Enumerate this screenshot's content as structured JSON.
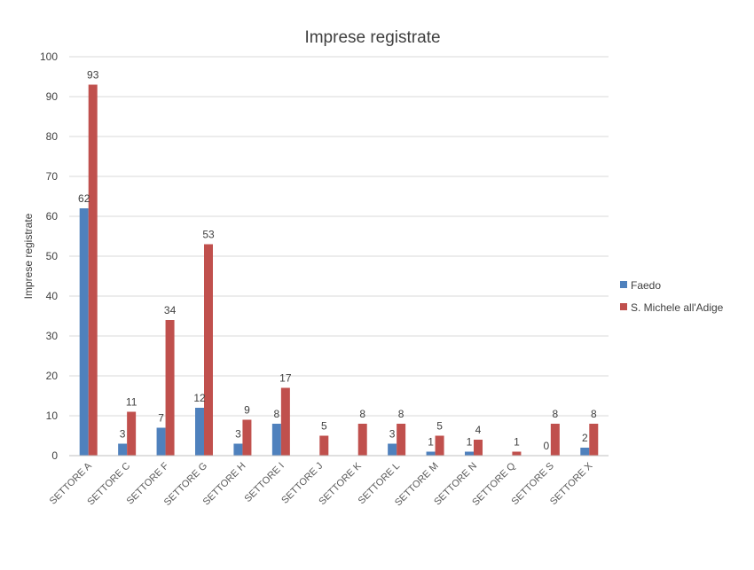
{
  "chart_data": {
    "type": "bar",
    "title": "Imprese registrate",
    "xlabel": "",
    "ylabel": "Imprese registrate",
    "ylim": [
      0,
      100
    ],
    "yticks": [
      0,
      10,
      20,
      30,
      40,
      50,
      60,
      70,
      80,
      90,
      100
    ],
    "grid": true,
    "legend_position": "right",
    "categories": [
      "SETTORE A",
      "SETTORE C",
      "SETTORE F",
      "SETTORE G",
      "SETTORE H",
      "SETTORE I",
      "SETTORE J",
      "SETTORE K",
      "SETTORE L",
      "SETTORE M",
      "SETTORE N",
      "SETTORE Q",
      "SETTORE S",
      "SETTORE X"
    ],
    "series": [
      {
        "name": "Faedo",
        "color": "#4f81bd",
        "values": [
          62,
          3,
          7,
          12,
          3,
          8,
          null,
          null,
          3,
          1,
          1,
          null,
          0,
          2
        ]
      },
      {
        "name": "S. Michele all'Adige",
        "color": "#c0504d",
        "values": [
          93,
          11,
          34,
          53,
          9,
          17,
          5,
          8,
          8,
          5,
          4,
          1,
          8,
          8
        ]
      }
    ]
  }
}
